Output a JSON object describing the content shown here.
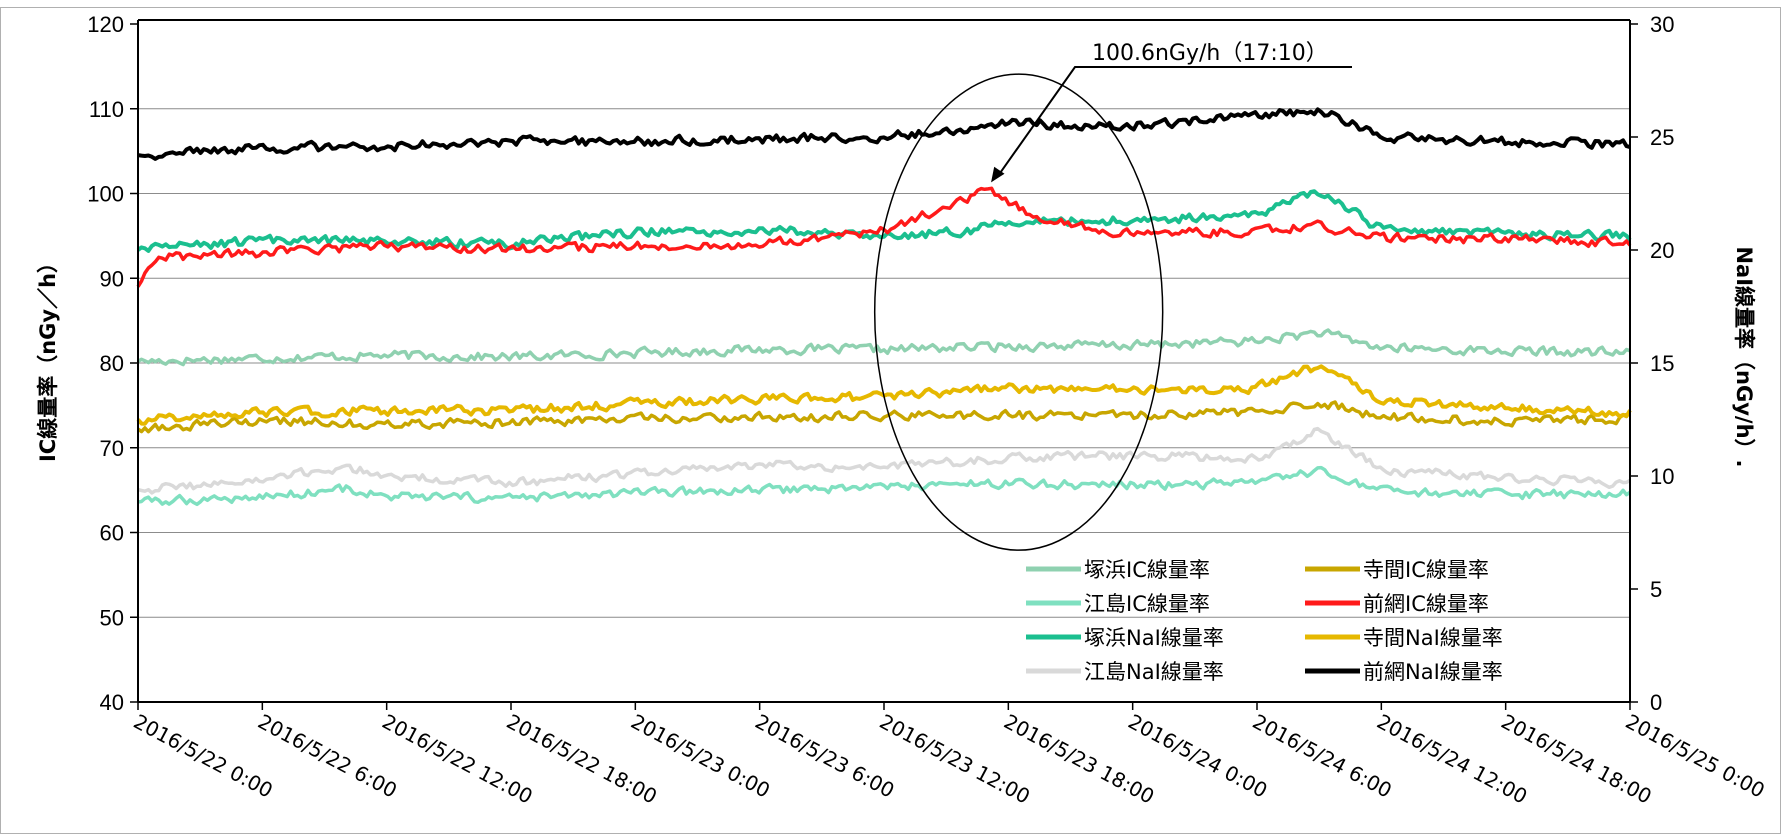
{
  "chart_data": {
    "type": "line",
    "title": "",
    "x_axis": {
      "type": "datetime",
      "min": "2016-05-22T00:00",
      "max": "2016-05-25T00:00",
      "ticks": [
        "2016/5/22 0:00",
        "2016/5/22 6:00",
        "2016/5/22 12:00",
        "2016/5/22 18:00",
        "2016/5/23 0:00",
        "2016/5/23 6:00",
        "2016/5/23 12:00",
        "2016/5/23 18:00",
        "2016/5/24 0:00",
        "2016/5/24 6:00",
        "2016/5/24 12:00",
        "2016/5/24 18:00",
        "2016/5/25 0:00"
      ]
    },
    "y_left": {
      "label": "IC線量率（nGy／h）",
      "min": 40,
      "max": 120,
      "ticks": [
        40,
        50,
        60,
        70,
        80,
        90,
        100,
        110,
        120
      ]
    },
    "y_right": {
      "label": "NaI線量率（nGy/h）.",
      "min": 0,
      "max": 30,
      "ticks": [
        0,
        5,
        10,
        15,
        20,
        25,
        30
      ]
    },
    "grid": true,
    "legend_position": "bottom-right inside",
    "annotation": {
      "text": "100.6nGy/h（17:10）",
      "x": "2016-05-23T17:10",
      "y": 100.6,
      "axis": "left"
    },
    "highlight": {
      "shape": "ellipse",
      "x_center": "2016-05-23T18:30",
      "y_center": 86,
      "axis": "left"
    },
    "series": [
      {
        "name": "塚浜IC線量率",
        "axis": "left",
        "color": "#8fd1b0",
        "width": 3.5,
        "x": [
          "2016-05-22T00:00",
          "2016-05-22T06:00",
          "2016-05-22T12:00",
          "2016-05-22T18:00",
          "2016-05-23T00:00",
          "2016-05-23T06:00",
          "2016-05-23T12:00",
          "2016-05-23T18:00",
          "2016-05-24T00:00",
          "2016-05-24T06:00",
          "2016-05-24T09:00",
          "2016-05-24T12:00",
          "2016-05-24T18:00",
          "2016-05-25T00:00"
        ],
        "y": [
          80.2,
          80.6,
          80.9,
          80.7,
          81.2,
          81.6,
          81.6,
          82.0,
          82.1,
          82.6,
          83.6,
          81.8,
          81.4,
          81.2
        ]
      },
      {
        "name": "江島IC線量率",
        "axis": "left",
        "color": "#7fe0c0",
        "width": 3.5,
        "x": [
          "2016-05-22T00:00",
          "2016-05-22T06:00",
          "2016-05-22T10:00",
          "2016-05-22T12:00",
          "2016-05-22T18:00",
          "2016-05-23T00:00",
          "2016-05-23T06:00",
          "2016-05-23T12:00",
          "2016-05-23T18:00",
          "2016-05-24T00:00",
          "2016-05-24T06:00",
          "2016-05-24T09:00",
          "2016-05-24T12:00",
          "2016-05-24T18:00",
          "2016-05-25T00:00"
        ],
        "y": [
          63.6,
          64.2,
          65.2,
          64.2,
          64.0,
          64.6,
          65.0,
          65.4,
          65.8,
          65.6,
          65.8,
          67.2,
          64.8,
          64.4,
          64.6
        ]
      },
      {
        "name": "塚浜NaI線量率",
        "axis": "right",
        "color": "#1bbf8f",
        "width": 4,
        "x": [
          "2016-05-22T00:00",
          "2016-05-22T06:00",
          "2016-05-22T12:00",
          "2016-05-22T18:00",
          "2016-05-23T00:00",
          "2016-05-23T06:00",
          "2016-05-23T12:00",
          "2016-05-23T16:00",
          "2016-05-23T18:00",
          "2016-05-24T00:00",
          "2016-05-24T06:00",
          "2016-05-24T09:00",
          "2016-05-24T12:00",
          "2016-05-24T18:00",
          "2016-05-25T00:00"
        ],
        "y": [
          20.0,
          20.4,
          20.4,
          20.3,
          20.8,
          20.9,
          20.6,
          20.8,
          21.3,
          21.3,
          21.6,
          22.6,
          20.9,
          20.7,
          20.6
        ]
      },
      {
        "name": "江島NaI線量率",
        "axis": "right",
        "color": "#d9d9d9",
        "width": 3.5,
        "x": [
          "2016-05-22T00:00",
          "2016-05-22T06:00",
          "2016-05-22T10:00",
          "2016-05-22T12:00",
          "2016-05-22T18:00",
          "2016-05-23T00:00",
          "2016-05-23T06:00",
          "2016-05-23T12:00",
          "2016-05-23T18:00",
          "2016-05-24T00:00",
          "2016-05-24T06:00",
          "2016-05-24T09:00",
          "2016-05-24T12:00",
          "2016-05-24T18:00",
          "2016-05-25T00:00"
        ],
        "y": [
          9.4,
          9.8,
          10.4,
          10.0,
          9.7,
          10.1,
          10.5,
          10.4,
          10.8,
          10.9,
          10.8,
          12.0,
          10.3,
          9.9,
          9.7
        ]
      },
      {
        "name": "寺間IC線量率",
        "axis": "left",
        "color": "#c8a600",
        "width": 3.5,
        "x": [
          "2016-05-22T00:00",
          "2016-05-22T06:00",
          "2016-05-22T12:00",
          "2016-05-22T18:00",
          "2016-05-23T00:00",
          "2016-05-23T06:00",
          "2016-05-23T12:00",
          "2016-05-23T18:00",
          "2016-05-24T00:00",
          "2016-05-24T06:00",
          "2016-05-24T09:00",
          "2016-05-24T12:00",
          "2016-05-24T18:00",
          "2016-05-25T00:00"
        ],
        "y": [
          72.2,
          73.2,
          72.8,
          73.0,
          73.4,
          73.6,
          73.8,
          73.8,
          73.8,
          74.2,
          75.4,
          73.6,
          73.2,
          73.4
        ]
      },
      {
        "name": "前網IC線量率",
        "axis": "left",
        "color": "#ff1a1a",
        "width": 3.5,
        "x": [
          "2016-05-22T00:00",
          "2016-05-22T01:00",
          "2016-05-22T06:00",
          "2016-05-22T12:00",
          "2016-05-22T18:00",
          "2016-05-23T00:00",
          "2016-05-23T06:00",
          "2016-05-23T12:00",
          "2016-05-23T15:00",
          "2016-05-23T17:10",
          "2016-05-23T19:00",
          "2016-05-23T22:00",
          "2016-05-24T00:00",
          "2016-05-24T06:00",
          "2016-05-24T09:00",
          "2016-05-24T12:00",
          "2016-05-24T18:00",
          "2016-05-25T00:00"
        ],
        "y": [
          89.0,
          92.4,
          93.0,
          93.8,
          93.4,
          93.8,
          94.0,
          95.6,
          98.4,
          100.6,
          97.5,
          96.0,
          95.2,
          95.6,
          96.2,
          94.8,
          94.6,
          94.2
        ]
      },
      {
        "name": "寺間NaI線量率",
        "axis": "right",
        "color": "#e6b800",
        "width": 4,
        "x": [
          "2016-05-22T00:00",
          "2016-05-22T06:00",
          "2016-05-22T12:00",
          "2016-05-22T18:00",
          "2016-05-23T00:00",
          "2016-05-23T06:00",
          "2016-05-23T12:00",
          "2016-05-23T18:00",
          "2016-05-24T00:00",
          "2016-05-24T06:00",
          "2016-05-24T09:00",
          "2016-05-24T12:00",
          "2016-05-24T18:00",
          "2016-05-25T00:00"
        ],
        "y": [
          12.5,
          12.8,
          12.9,
          12.9,
          13.2,
          13.4,
          13.5,
          13.9,
          13.8,
          13.9,
          14.9,
          13.4,
          13.0,
          12.8
        ]
      },
      {
        "name": "前網NaI線量率",
        "axis": "right",
        "color": "#000000",
        "width": 4,
        "x": [
          "2016-05-22T00:00",
          "2016-05-22T06:00",
          "2016-05-22T12:00",
          "2016-05-22T18:00",
          "2016-05-23T00:00",
          "2016-05-23T06:00",
          "2016-05-23T12:00",
          "2016-05-23T16:00",
          "2016-05-23T18:00",
          "2016-05-24T00:00",
          "2016-05-24T04:00",
          "2016-05-24T09:00",
          "2016-05-24T12:00",
          "2016-05-24T18:00",
          "2016-05-25T00:00"
        ],
        "y": [
          24.2,
          24.5,
          24.6,
          24.8,
          24.8,
          24.9,
          25.0,
          25.4,
          25.6,
          25.5,
          25.8,
          26.2,
          25.0,
          24.8,
          24.7
        ]
      }
    ]
  },
  "legend": {
    "left": [
      "塚浜IC線量率",
      "江島IC線量率",
      "塚浜NaI線量率",
      "江島NaI線量率"
    ],
    "right": [
      "寺間IC線量率",
      "前網IC線量率",
      "寺間NaI線量率",
      "前網NaI線量率"
    ]
  }
}
